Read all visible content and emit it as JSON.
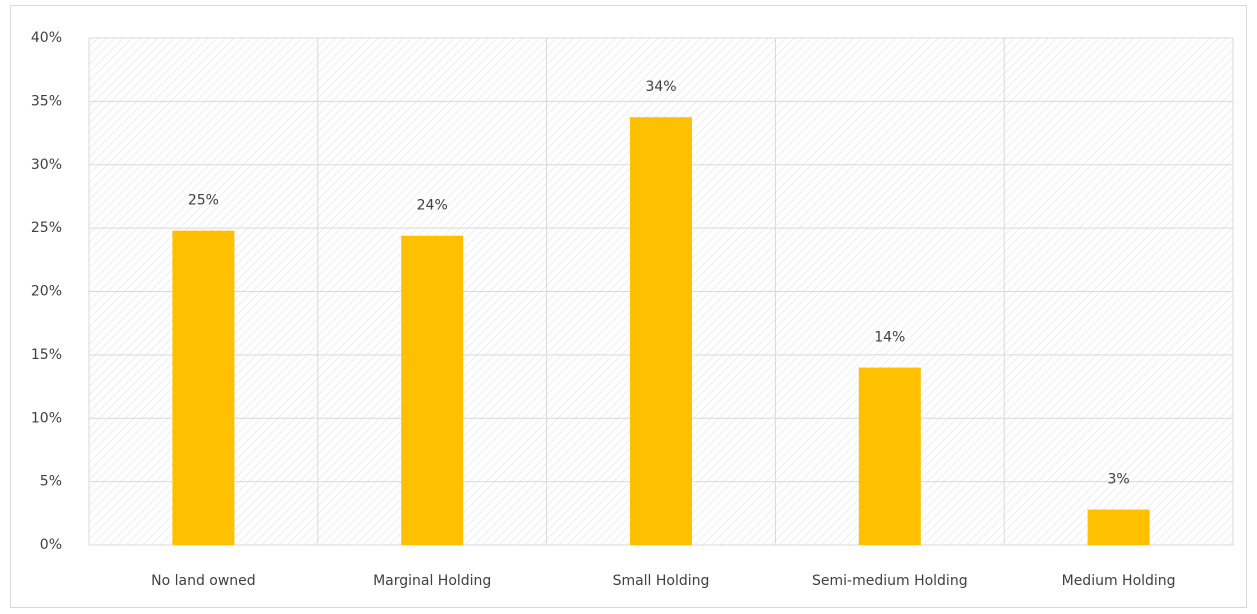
{
  "chart_data": {
    "type": "bar",
    "categories": [
      "No land owned",
      "Marginal Holding",
      "Small Holding",
      "Semi-medium Holding",
      "Medium Holding"
    ],
    "values": [
      24.8,
      24.4,
      33.75,
      14.0,
      2.8
    ],
    "value_labels": [
      "25%",
      "24%",
      "34%",
      "14%",
      "3%"
    ],
    "color": "#ffc000",
    "ylim": [
      0,
      40
    ],
    "yticks": [
      {
        "value": 0,
        "label": "0%"
      },
      {
        "value": 5,
        "label": "5%"
      },
      {
        "value": 10,
        "label": "10%"
      },
      {
        "value": 15,
        "label": "15%"
      },
      {
        "value": 20,
        "label": "20%"
      },
      {
        "value": 25,
        "label": "25%"
      },
      {
        "value": 30,
        "label": "30%"
      },
      {
        "value": 35,
        "label": "35%"
      },
      {
        "value": 40,
        "label": "40%"
      }
    ],
    "grid": true
  }
}
